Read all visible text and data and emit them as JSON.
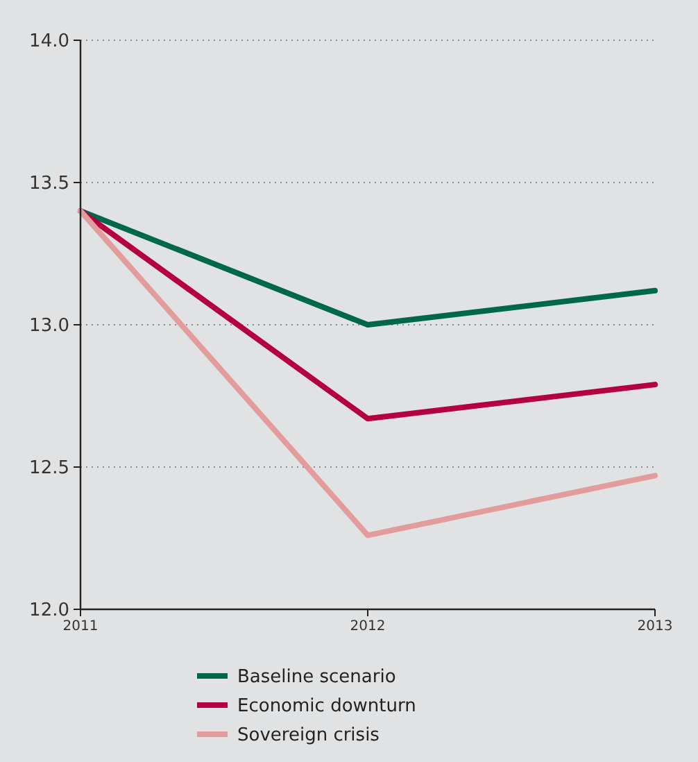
{
  "chart_data": {
    "type": "line",
    "x": [
      2011,
      2012,
      2013
    ],
    "xlim": [
      2011,
      2013
    ],
    "xticks": [
      2011,
      2012,
      2013
    ],
    "ylim": [
      12.0,
      14.0
    ],
    "yticks": [
      {
        "value": 12.0,
        "label": "12.0"
      },
      {
        "value": 12.5,
        "label": "12.5"
      },
      {
        "value": 13.0,
        "label": "13.0"
      },
      {
        "value": 13.5,
        "label": "13.5"
      },
      {
        "value": 14.0,
        "label": "14.0"
      }
    ],
    "grid": "y",
    "legend": "bottom",
    "marker": "none",
    "line_style": "solid",
    "series": [
      {
        "name": "Baseline scenario",
        "color": "#00684a",
        "values": [
          13.4,
          13.0,
          13.12
        ]
      },
      {
        "name": "Economic downturn",
        "color": "#b5003f",
        "values": [
          13.4,
          12.67,
          12.79
        ]
      },
      {
        "name": "Sovereign crisis",
        "color": "#e39c9c",
        "values": [
          13.4,
          12.26,
          12.47
        ]
      }
    ]
  }
}
